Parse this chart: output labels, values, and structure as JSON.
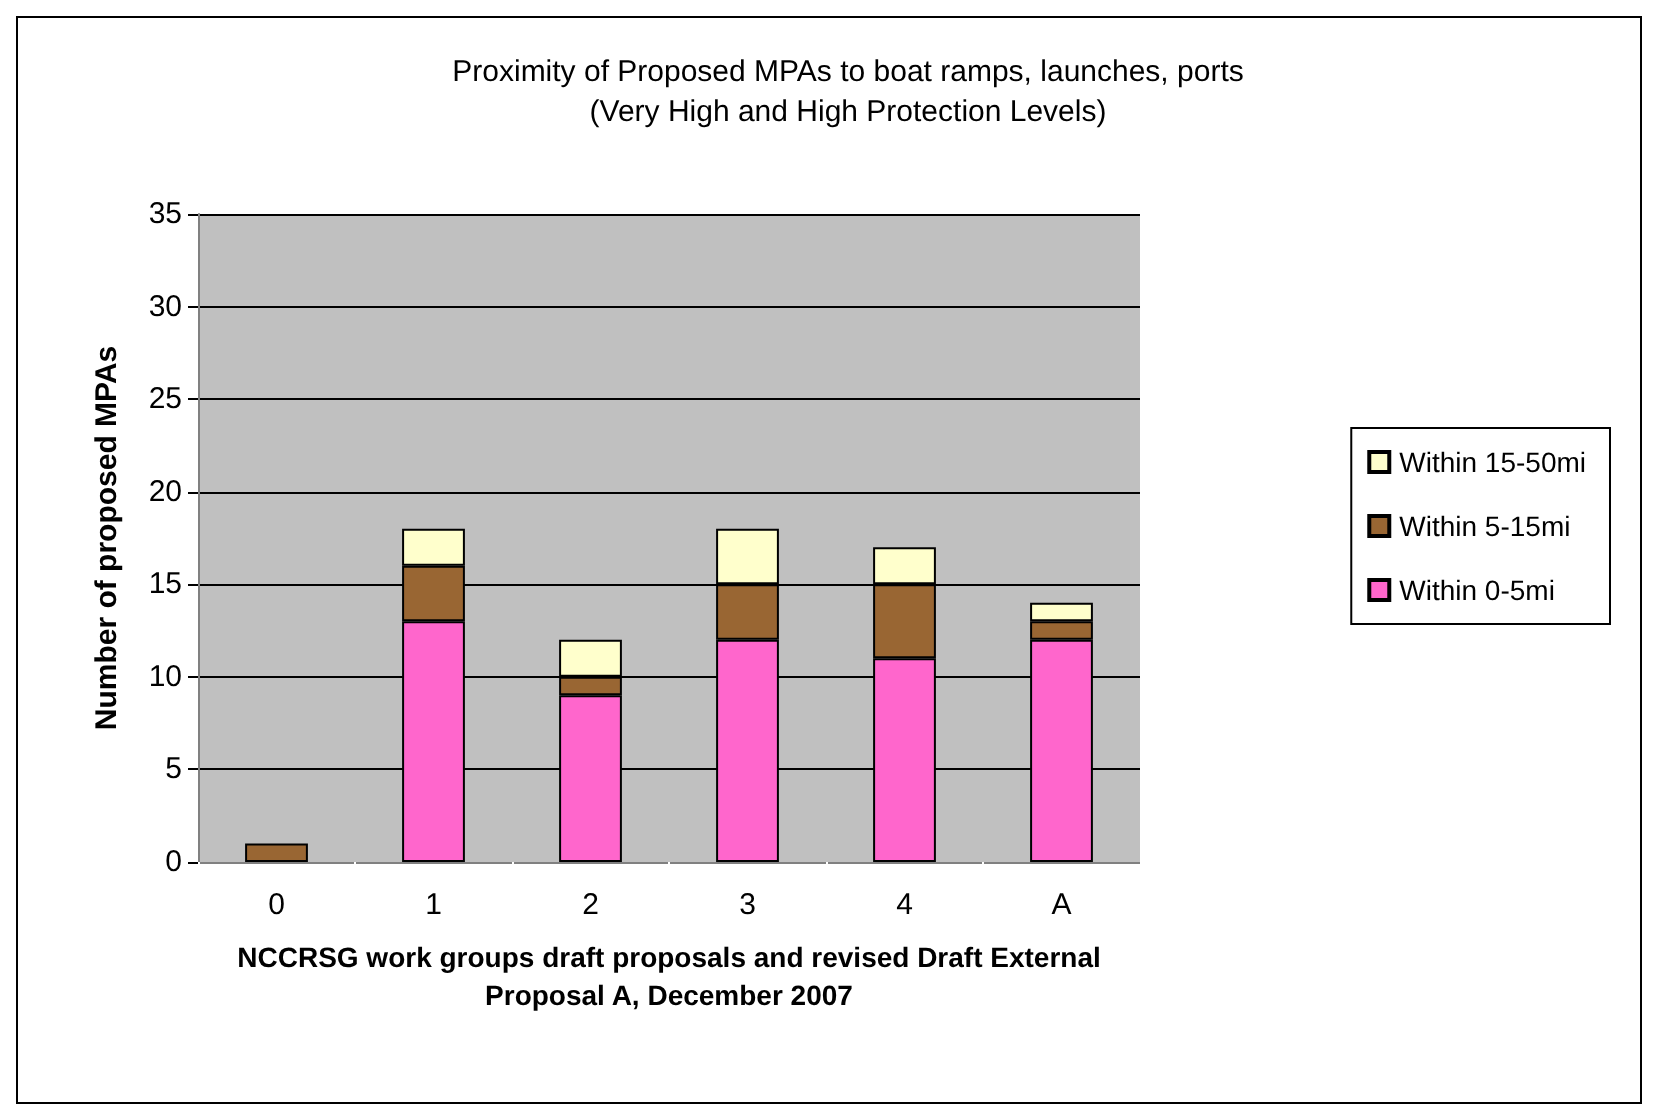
{
  "chart_data": {
    "type": "bar",
    "title": "Proximity of Proposed MPAs to boat ramps, launches, ports\n(Very High and High Protection Levels)",
    "xlabel": "NCCRSG work groups draft proposals and revised Draft External\nProposal A, December 2007",
    "ylabel": "Number of proposed MPAs",
    "categories": [
      "0",
      "1",
      "2",
      "3",
      "4",
      "A"
    ],
    "stacked": true,
    "series": [
      {
        "name": "Within 0-5mi",
        "color": "#ff66cc",
        "values": [
          0,
          13,
          9,
          12,
          11,
          12
        ]
      },
      {
        "name": "Within 5-15mi",
        "color": "#996633",
        "values": [
          1,
          3,
          1,
          3,
          4,
          1
        ]
      },
      {
        "name": "Within 15-50mi",
        "color": "#ffffcc",
        "values": [
          0,
          2,
          2,
          3,
          2,
          1
        ]
      }
    ],
    "ylim": [
      0,
      35
    ],
    "yticks": [
      0,
      5,
      10,
      15,
      20,
      25,
      30,
      35
    ],
    "grid": "y",
    "legend": "right"
  }
}
